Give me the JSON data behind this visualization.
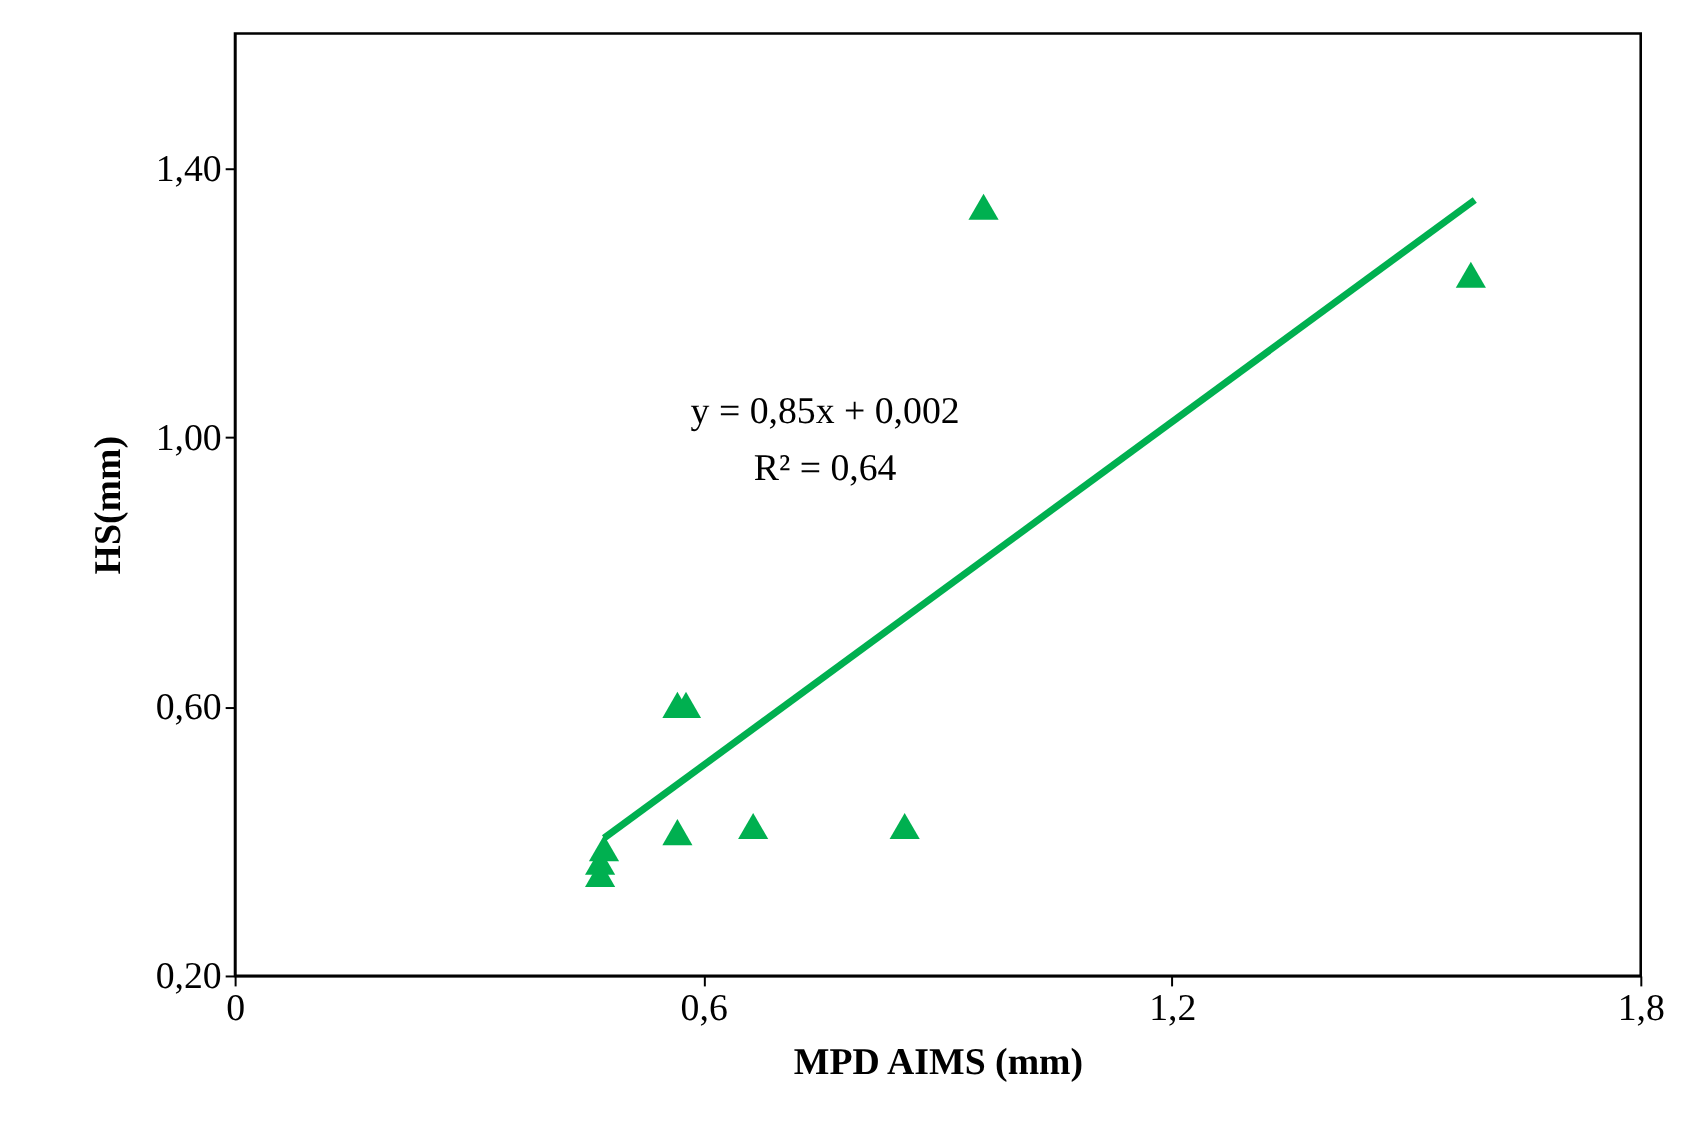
{
  "chart_data": {
    "type": "scatter",
    "xlabel": "MPD AIMS (mm)",
    "ylabel": "HS(mm)",
    "xlim": [
      0,
      1.8
    ],
    "ylim": [
      0.2,
      1.6
    ],
    "xticks": [
      0,
      {
        "value": 0.6,
        "label": "0,6"
      },
      {
        "value": 1.2,
        "label": "1,2"
      },
      {
        "value": 1.8,
        "label": "1,8"
      }
    ],
    "yticks": [
      {
        "value": 0.2,
        "label": "0,20"
      },
      {
        "value": 0.6,
        "label": "0,60"
      },
      {
        "value": 1.0,
        "label": "1,00"
      },
      {
        "value": 1.4,
        "label": "1,40"
      }
    ],
    "grid": false,
    "marker": "triangle",
    "annotations": [
      "y = 0,85x + 0,002",
      "R² = 0,64"
    ],
    "series": [
      {
        "color": "#00b050",
        "x": [
          0.468,
          0.468,
          0.473,
          0.567,
          0.567,
          0.578,
          0.664,
          0.858,
          0.959,
          1.583
        ],
        "values": [
          0.351,
          0.369,
          0.389,
          0.413,
          0.602,
          0.602,
          0.422,
          0.422,
          1.342,
          1.241
        ]
      },
      {
        "type": "line",
        "marker": "none",
        "color": "#00b050",
        "x": [
          0.473,
          1.588
        ],
        "values": [
          0.404,
          1.352
        ]
      }
    ]
  }
}
